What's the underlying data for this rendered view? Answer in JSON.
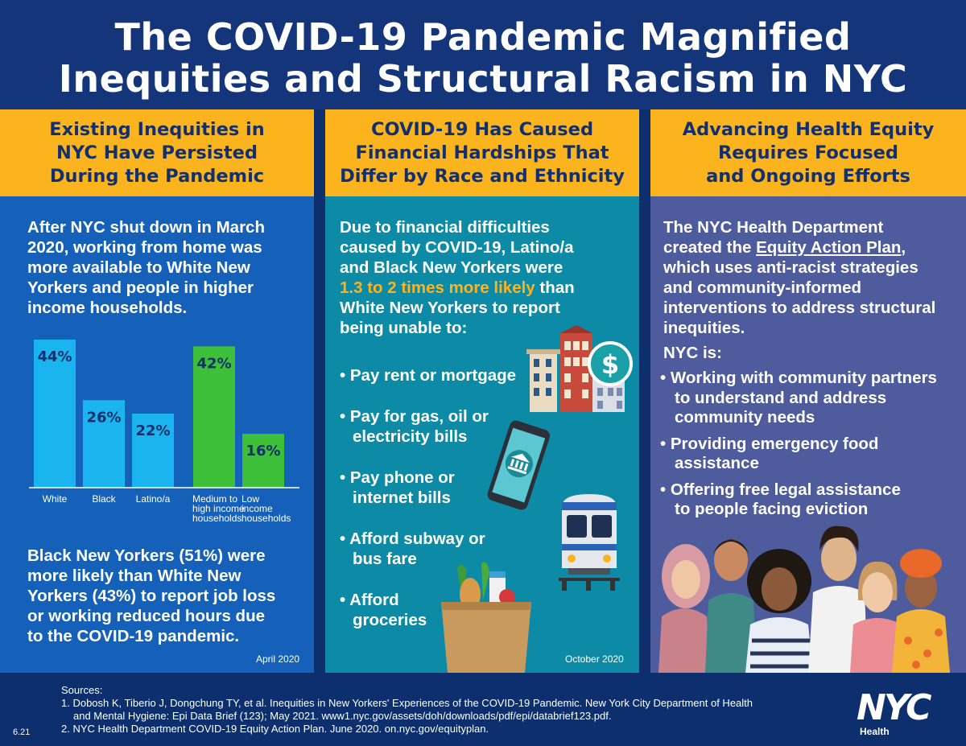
{
  "title": {
    "line1": "The COVID-19 Pandemic Magnified",
    "line2": "Inequities and Structural Racism in NYC"
  },
  "column1": {
    "heading": [
      "Existing Inequities in",
      "NYC Have Persisted",
      "During the Pandemic"
    ],
    "intro": [
      "After NYC shut down in March",
      "2020, working from home was",
      "more available to White New",
      "Yorkers and people in higher",
      "income households."
    ],
    "bottom": [
      "Black New Yorkers (51%) were",
      "more likely than White New",
      "Yorkers (43%) to report job loss",
      "or working reduced hours due",
      "to the COVID-19 pandemic."
    ],
    "date": "April 2020"
  },
  "chart_data": {
    "type": "bar",
    "categories": [
      "White",
      "Black",
      "Latino/a",
      "Medium to high income households",
      "Low income households"
    ],
    "category_lines": [
      [
        "White"
      ],
      [
        "Black"
      ],
      [
        "Latino/a"
      ],
      [
        "Medium to",
        "high income",
        "households"
      ],
      [
        "Low",
        "income",
        "households"
      ]
    ],
    "values": [
      44,
      26,
      22,
      42,
      16
    ],
    "value_labels": [
      "44%",
      "26%",
      "22%",
      "42%",
      "16%"
    ],
    "colors": [
      "#1ab4ee",
      "#1ab4ee",
      "#1ab4ee",
      "#3dbf3a",
      "#3dbf3a"
    ],
    "ylim": [
      0,
      44
    ],
    "title": "",
    "xlabel": "",
    "ylabel": ""
  },
  "column2": {
    "heading": [
      "COVID-19 Has Caused",
      "Financial Hardships That",
      "Differ by Race and Ethnicity"
    ],
    "intro_line1": "Due to financial difficulties",
    "intro_line2": "caused by COVID-19, Latino/a",
    "intro_line3": "and Black New Yorkers were",
    "intro_highlight": "1.3 to 2 times more likely",
    "intro_highlight_after": " than",
    "intro_line5": "White New Yorkers to report",
    "intro_line6": "being unable to:",
    "bullets": [
      [
        "• Pay rent or mortgage"
      ],
      [
        "• Pay for gas, oil or",
        "electricity bills"
      ],
      [
        "• Pay phone or",
        "internet bills"
      ],
      [
        "• Afford subway or",
        "bus fare"
      ],
      [
        "• Afford",
        "groceries"
      ]
    ],
    "date": "October 2020"
  },
  "column3": {
    "heading": [
      "Advancing Health Equity",
      "Requires Focused",
      "and Ongoing Efforts"
    ],
    "intro_line1": "The NYC Health Department",
    "intro_line2_before": "created the ",
    "intro_link": "Equity Action Plan",
    "intro_line2_after": ",",
    "intro_line3": "which uses anti-racist strategies",
    "intro_line4": "and community-informed",
    "intro_line5": "interventions to address structural",
    "intro_line6": "inequities.",
    "nyc_is": "NYC is:",
    "bullets": [
      [
        "• Working with community partners",
        "to understand and address",
        "community needs"
      ],
      [
        "• Providing emergency food",
        "assistance"
      ],
      [
        "• Offering free legal assistance",
        "to people facing eviction"
      ]
    ]
  },
  "footer": {
    "sources_label": "Sources:",
    "source1_line1": "1. Dobosh K, Tiberio J, Dongchung TY, et al. Inequities in New Yorkers' Experiences of the COVID-19 Pandemic. New York City Department of Health",
    "source1_line2": "and Mental Hygiene: Epi Data Brief (123); May 2021. www1.nyc.gov/assets/doh/downloads/pdf/epi/databrief123.pdf.",
    "source2": "2. NYC Health Department COVID-19 Equity Action Plan. June 2020. on.nyc.gov/equityplan.",
    "version": "6.21",
    "logo_text": "NYC",
    "logo_sub": "Health"
  },
  "colors": {
    "title_bg": "#14357a",
    "header_bg": "#fbb41e",
    "header_text": "#13306e",
    "col1_bg": "#1561b9",
    "col2_bg": "#0d8aa5",
    "col3_bg": "#4e5b9c",
    "highlight": "#fbb41e"
  },
  "icons": [
    "buildings-dollar-icon",
    "smartphone-bank-icon",
    "subway-train-icon",
    "grocery-bag-icon",
    "people-group-illustration",
    "nyc-health-logo"
  ]
}
